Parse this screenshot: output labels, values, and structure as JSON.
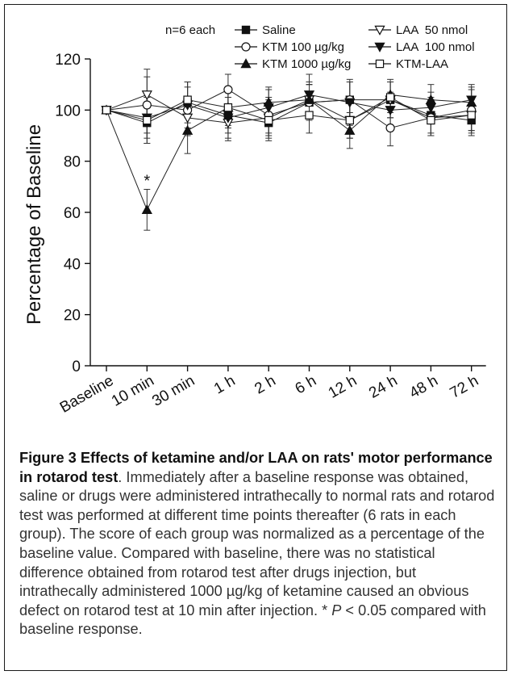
{
  "chart_data": {
    "type": "line",
    "title": "",
    "xlabel": "",
    "ylabel": "Percentage of Baseline",
    "ylim": [
      0,
      120
    ],
    "yticks": [
      0,
      20,
      40,
      60,
      80,
      100,
      120
    ],
    "categories": [
      "Baseline",
      "10 min",
      "30 min",
      "1 h",
      "2 h",
      "6 h",
      "12 h",
      "24 h",
      "48 h",
      "72 h"
    ],
    "legend_header": "n=6 each",
    "legend_position": "top-right",
    "grid": false,
    "series": [
      {
        "name": "Saline",
        "marker": "square-filled",
        "values": [
          100,
          95,
          103,
          98,
          95,
          103,
          104,
          104,
          98,
          96
        ],
        "errors": [
          0,
          8,
          8,
          7,
          7,
          7,
          7,
          7,
          7,
          6
        ]
      },
      {
        "name": "LAA  50 nmol",
        "marker": "triangle-down-open",
        "values": [
          100,
          106,
          97,
          95,
          97,
          104,
          96,
          104,
          97,
          98
        ],
        "errors": [
          0,
          10,
          7,
          7,
          7,
          7,
          7,
          7,
          7,
          7
        ]
      },
      {
        "name": "KTM 100 µg/kg",
        "marker": "circle-open",
        "values": [
          100,
          102,
          100,
          108,
          98,
          103,
          104,
          93,
          97,
          100
        ],
        "errors": [
          0,
          11,
          9,
          6,
          7,
          7,
          7,
          7,
          7,
          8
        ]
      },
      {
        "name": "LAA  100 nmol",
        "marker": "triangle-down-filled",
        "values": [
          100,
          97,
          102,
          97,
          101,
          106,
          103,
          100,
          101,
          104
        ],
        "errors": [
          0,
          8,
          9,
          8,
          7,
          8,
          9,
          7,
          6,
          6
        ]
      },
      {
        "name": "KTM 1000 µg/kg",
        "marker": "triangle-up-filled",
        "values": [
          100,
          61,
          92,
          101,
          103,
          104,
          92,
          106,
          104,
          103
        ],
        "errors": [
          0,
          8,
          9,
          8,
          6,
          6,
          7,
          6,
          6,
          6
        ]
      },
      {
        "name": "KTM-LAA",
        "marker": "square-open",
        "values": [
          100,
          96,
          104,
          101,
          96,
          98,
          96,
          105,
          96,
          98
        ],
        "errors": [
          0,
          9,
          7,
          7,
          7,
          7,
          7,
          6,
          6,
          6
        ]
      }
    ],
    "annotations": [
      {
        "category": "10 min",
        "text": "*"
      }
    ]
  },
  "caption": {
    "figure_label": "Figure 3",
    "title": "Effects of ketamine and/or LAA on rats' motor performance in rotarod test",
    "body_part1": ". Immediately after a baseline response was obtained, saline or drugs were administered intrathecally to normal rats and rotarod test was performed at different time points thereafter (6 rats in each group). The score of each group was normalized as a percentage of the baseline value. Compared with baseline, there was no statistical difference obtained from rotarod test after drugs injection, but intrathecally administered 1000 µg/kg of ketamine caused an obvious defect on rotarod test at 10 min after injection. * ",
    "p_symbol": "P",
    "body_part2": " < 0.05 compared with baseline response."
  }
}
